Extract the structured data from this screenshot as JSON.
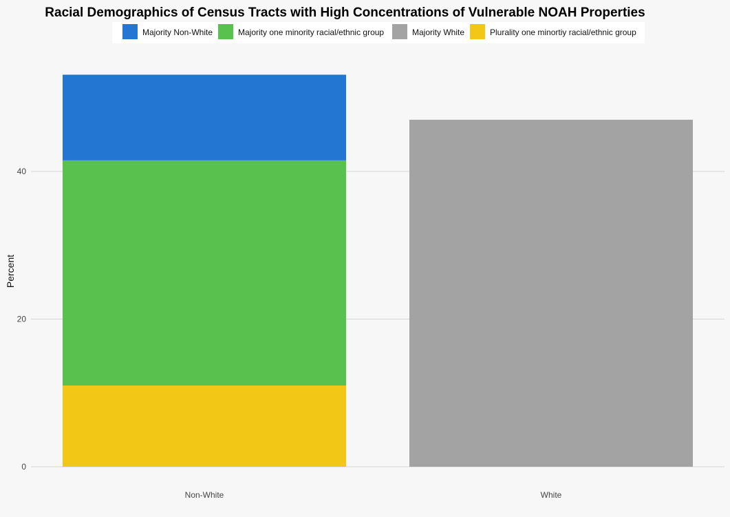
{
  "chart_data": {
    "type": "bar",
    "stacked": true,
    "title": "Racial Demographics of Census Tracts with High Concentrations of Vulnerable NOAH Properties",
    "xlabel": "",
    "ylabel": "Percent",
    "categories": [
      "Non-White",
      "White"
    ],
    "ylim": [
      0,
      55
    ],
    "yticks": [
      0,
      20,
      40
    ],
    "grid": "horizontal major gridlines",
    "legend_position": "top",
    "series": [
      {
        "name": "Plurality one minortiy racial/ethnic group",
        "color": "#f2c715",
        "values": [
          11,
          0
        ]
      },
      {
        "name": "Majority one minority racial/ethnic group",
        "color": "#59c24f",
        "values": [
          30.5,
          0
        ]
      },
      {
        "name": "Majority Non-White",
        "color": "#2377d3",
        "values": [
          11.6,
          0
        ]
      },
      {
        "name": "Majority White",
        "color": "#a3a3a3",
        "values": [
          0,
          47
        ]
      }
    ],
    "legend": [
      {
        "name": "Majority Non-White",
        "color": "#2377d3"
      },
      {
        "name": "Majority one minority racial/ethnic group",
        "color": "#59c24f"
      },
      {
        "name": "Majority White",
        "color": "#a3a3a3"
      },
      {
        "name": "Plurality one minortiy racial/ethnic group",
        "color": "#f2c715"
      }
    ]
  }
}
